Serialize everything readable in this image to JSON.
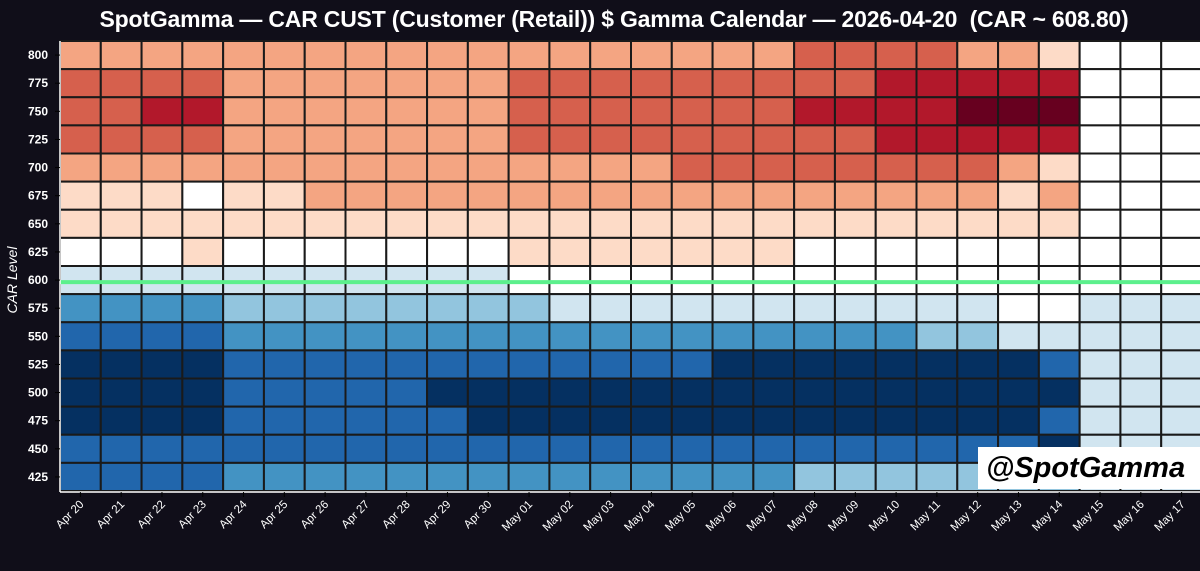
{
  "chart_data": {
    "type": "heatmap",
    "title": "SpotGamma — CAR CUST (Customer (Retail)) $ Gamma Calendar — 2026-04-20  (CAR ~ 608.80)",
    "xlabel": "",
    "ylabel": "CAR Level",
    "x": [
      "Apr 20",
      "Apr 21",
      "Apr 22",
      "Apr 23",
      "Apr 24",
      "Apr 25",
      "Apr 26",
      "Apr 27",
      "Apr 28",
      "Apr 29",
      "Apr 30",
      "May 01",
      "May 02",
      "May 03",
      "May 04",
      "May 05",
      "May 06",
      "May 07",
      "May 08",
      "May 09",
      "May 10",
      "May 11",
      "May 12",
      "May 13",
      "May 14",
      "May 15",
      "May 16",
      "May 17"
    ],
    "y": [
      800,
      775,
      750,
      725,
      700,
      675,
      650,
      625,
      600,
      575,
      550,
      525,
      500,
      475,
      450,
      425
    ],
    "value_scale": "diverging intensity level, -5 (deep blue, negative gamma) to +5 (deep red, positive gamma), 0 = white",
    "values": [
      [
        2,
        2,
        2,
        2,
        2,
        2,
        2,
        2,
        2,
        2,
        2,
        2,
        2,
        2,
        2,
        2,
        2,
        2,
        3,
        3,
        3,
        3,
        2,
        2,
        1,
        0,
        0,
        0
      ],
      [
        3,
        3,
        3,
        3,
        2,
        2,
        2,
        2,
        2,
        2,
        2,
        3,
        3,
        3,
        3,
        3,
        3,
        3,
        3,
        3,
        4,
        4,
        4,
        4,
        4,
        0,
        0,
        0
      ],
      [
        3,
        3,
        4,
        4,
        2,
        2,
        2,
        2,
        2,
        2,
        2,
        3,
        3,
        3,
        3,
        3,
        3,
        3,
        4,
        4,
        4,
        4,
        5,
        5,
        5,
        0,
        0,
        0
      ],
      [
        3,
        3,
        3,
        3,
        2,
        2,
        2,
        2,
        2,
        2,
        2,
        3,
        3,
        3,
        3,
        3,
        3,
        3,
        3,
        3,
        4,
        4,
        4,
        4,
        4,
        0,
        0,
        0
      ],
      [
        2,
        2,
        2,
        2,
        2,
        2,
        2,
        2,
        2,
        2,
        2,
        2,
        2,
        2,
        2,
        3,
        3,
        3,
        3,
        3,
        3,
        3,
        3,
        2,
        1,
        0,
        0,
        0
      ],
      [
        1,
        1,
        1,
        0,
        1,
        1,
        2,
        2,
        2,
        2,
        2,
        2,
        2,
        2,
        2,
        2,
        2,
        2,
        2,
        2,
        2,
        2,
        2,
        1,
        2,
        0,
        0,
        0
      ],
      [
        1,
        1,
        1,
        1,
        1,
        1,
        1,
        1,
        1,
        1,
        1,
        1,
        1,
        1,
        1,
        1,
        1,
        1,
        1,
        1,
        1,
        1,
        1,
        1,
        1,
        0,
        0,
        0
      ],
      [
        0,
        0,
        0,
        1,
        0,
        0,
        0,
        0,
        0,
        0,
        0,
        1,
        1,
        1,
        1,
        1,
        1,
        1,
        0,
        0,
        0,
        0,
        0,
        0,
        0,
        0,
        0,
        0
      ],
      [
        -1,
        -1,
        -1,
        -1,
        -1,
        -1,
        -1,
        -1,
        -1,
        -1,
        -1,
        0,
        0,
        0,
        0,
        0,
        0,
        0,
        0,
        0,
        0,
        0,
        0,
        0,
        0,
        0,
        0,
        0
      ],
      [
        -3,
        -3,
        -3,
        -3,
        -2,
        -2,
        -2,
        -2,
        -2,
        -2,
        -2,
        -2,
        -1,
        -1,
        -1,
        -1,
        -1,
        -1,
        -1,
        -1,
        -1,
        -1,
        -1,
        0,
        0,
        -1,
        -1,
        -1
      ],
      [
        -4,
        -4,
        -4,
        -4,
        -3,
        -3,
        -3,
        -3,
        -3,
        -3,
        -3,
        -3,
        -3,
        -3,
        -3,
        -3,
        -3,
        -3,
        -3,
        -3,
        -3,
        -2,
        -2,
        -1,
        -1,
        -1,
        -1,
        -1
      ],
      [
        -5,
        -5,
        -5,
        -5,
        -4,
        -4,
        -4,
        -4,
        -4,
        -4,
        -4,
        -4,
        -4,
        -4,
        -4,
        -4,
        -5,
        -5,
        -5,
        -5,
        -5,
        -5,
        -5,
        -5,
        -4,
        -1,
        -1,
        -1
      ],
      [
        -5,
        -5,
        -5,
        -5,
        -4,
        -4,
        -4,
        -4,
        -4,
        -5,
        -5,
        -5,
        -5,
        -5,
        -5,
        -5,
        -5,
        -5,
        -5,
        -5,
        -5,
        -5,
        -5,
        -5,
        -5,
        -1,
        -1,
        -1
      ],
      [
        -5,
        -5,
        -5,
        -5,
        -4,
        -4,
        -4,
        -4,
        -4,
        -4,
        -5,
        -5,
        -5,
        -5,
        -5,
        -5,
        -5,
        -5,
        -5,
        -5,
        -5,
        -5,
        -5,
        -5,
        -4,
        -1,
        -1,
        -1
      ],
      [
        -4,
        -4,
        -4,
        -4,
        -4,
        -4,
        -4,
        -4,
        -4,
        -4,
        -4,
        -4,
        -4,
        -4,
        -4,
        -4,
        -4,
        -4,
        -4,
        -4,
        -4,
        -4,
        -4,
        -4,
        -5,
        -1,
        -1,
        -1
      ],
      [
        -4,
        -4,
        -4,
        -4,
        -3,
        -3,
        -3,
        -3,
        -3,
        -3,
        -3,
        -3,
        -3,
        -3,
        -3,
        -3,
        -3,
        -3,
        -2,
        -2,
        -2,
        -2,
        -2,
        -2,
        -2,
        -1,
        -1,
        -1
      ]
    ],
    "colors": {
      "5": "#67001f",
      "4": "#b2182b",
      "3": "#d6604d",
      "2": "#f4a582",
      "1": "#fddbc7",
      "0": "#ffffff",
      "-1": "#d1e5f0",
      "-2": "#92c5de",
      "-3": "#4393c3",
      "-4": "#2166ac",
      "-5": "#053061"
    },
    "spot": 608.8,
    "spot_line_color": "#5cf08c",
    "grid": true
  },
  "watermark": "@SpotGamma"
}
